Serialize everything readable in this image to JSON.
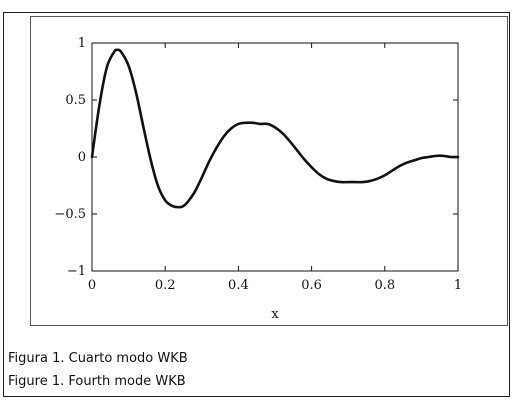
{
  "chart_data": {
    "type": "line",
    "title": "",
    "xlabel": "x",
    "ylabel": "",
    "xlim": [
      0,
      1
    ],
    "ylim": [
      -1,
      1
    ],
    "xticks": [
      "0",
      "0.2",
      "0.4",
      "0.6",
      "0.8",
      "1"
    ],
    "yticks": [
      "1",
      "0.5",
      "0",
      "−0.5",
      "−1"
    ],
    "grid": false,
    "legend": "none",
    "series": [
      {
        "color": "#111111",
        "x": [
          0,
          0.02,
          0.04,
          0.06,
          0.07,
          0.08,
          0.1,
          0.12,
          0.14,
          0.16,
          0.18,
          0.2,
          0.22,
          0.24,
          0.25,
          0.26,
          0.28,
          0.3,
          0.32,
          0.34,
          0.36,
          0.38,
          0.4,
          0.42,
          0.44,
          0.46,
          0.48,
          0.5,
          0.52,
          0.54,
          0.56,
          0.58,
          0.6,
          0.62,
          0.64,
          0.66,
          0.68,
          0.7,
          0.72,
          0.74,
          0.76,
          0.78,
          0.8,
          0.82,
          0.84,
          0.86,
          0.88,
          0.9,
          0.92,
          0.94,
          0.96,
          0.98,
          1.0
        ],
        "y": [
          0.0,
          0.45,
          0.78,
          0.92,
          0.94,
          0.92,
          0.8,
          0.57,
          0.27,
          -0.02,
          -0.25,
          -0.38,
          -0.43,
          -0.44,
          -0.43,
          -0.4,
          -0.31,
          -0.18,
          -0.04,
          0.08,
          0.18,
          0.25,
          0.29,
          0.3,
          0.3,
          0.29,
          0.29,
          0.26,
          0.21,
          0.14,
          0.06,
          -0.02,
          -0.09,
          -0.15,
          -0.19,
          -0.21,
          -0.22,
          -0.22,
          -0.22,
          -0.22,
          -0.21,
          -0.19,
          -0.16,
          -0.12,
          -0.08,
          -0.05,
          -0.03,
          -0.01,
          0.0,
          0.01,
          0.01,
          0.0,
          0.0
        ]
      }
    ]
  },
  "captions": {
    "line1": "Figura 1. Cuarto modo WKB",
    "line2": "Figure 1. Fourth mode WKB"
  }
}
